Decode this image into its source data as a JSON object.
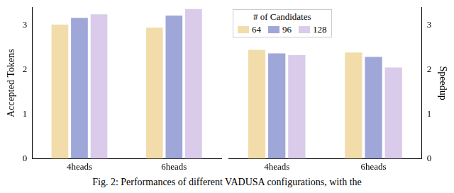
{
  "chart_data": [
    {
      "type": "bar",
      "y_label": "Accepted Tokens",
      "categories": [
        "4heads",
        "6heads"
      ],
      "series": [
        {
          "name": "64",
          "color": "#f2dcaa",
          "values": [
            3.02,
            2.95
          ]
        },
        {
          "name": "96",
          "color": "#9ea7d8",
          "values": [
            3.17,
            3.22
          ]
        },
        {
          "name": "128",
          "color": "#d9cbe9",
          "values": [
            3.25,
            3.37
          ]
        }
      ],
      "ylim": [
        0,
        3.4
      ],
      "yticks": [
        0,
        1,
        2,
        3
      ],
      "grid": false
    },
    {
      "type": "bar",
      "y_label": "Speedup",
      "categories": [
        "4heads",
        "6heads"
      ],
      "series": [
        {
          "name": "64",
          "color": "#f2dcaa",
          "values": [
            2.45,
            2.39
          ]
        },
        {
          "name": "96",
          "color": "#9ea7d8",
          "values": [
            2.37,
            2.29
          ]
        },
        {
          "name": "128",
          "color": "#d9cbe9",
          "values": [
            2.33,
            2.05
          ]
        }
      ],
      "ylim": [
        0,
        3.4
      ],
      "yticks": [
        0,
        1,
        2,
        3
      ],
      "grid": false,
      "legend": "upper left",
      "legend_title": "# of Candidates"
    }
  ],
  "caption": "Fig. 2: Performances of different VADUSA configurations, with the"
}
